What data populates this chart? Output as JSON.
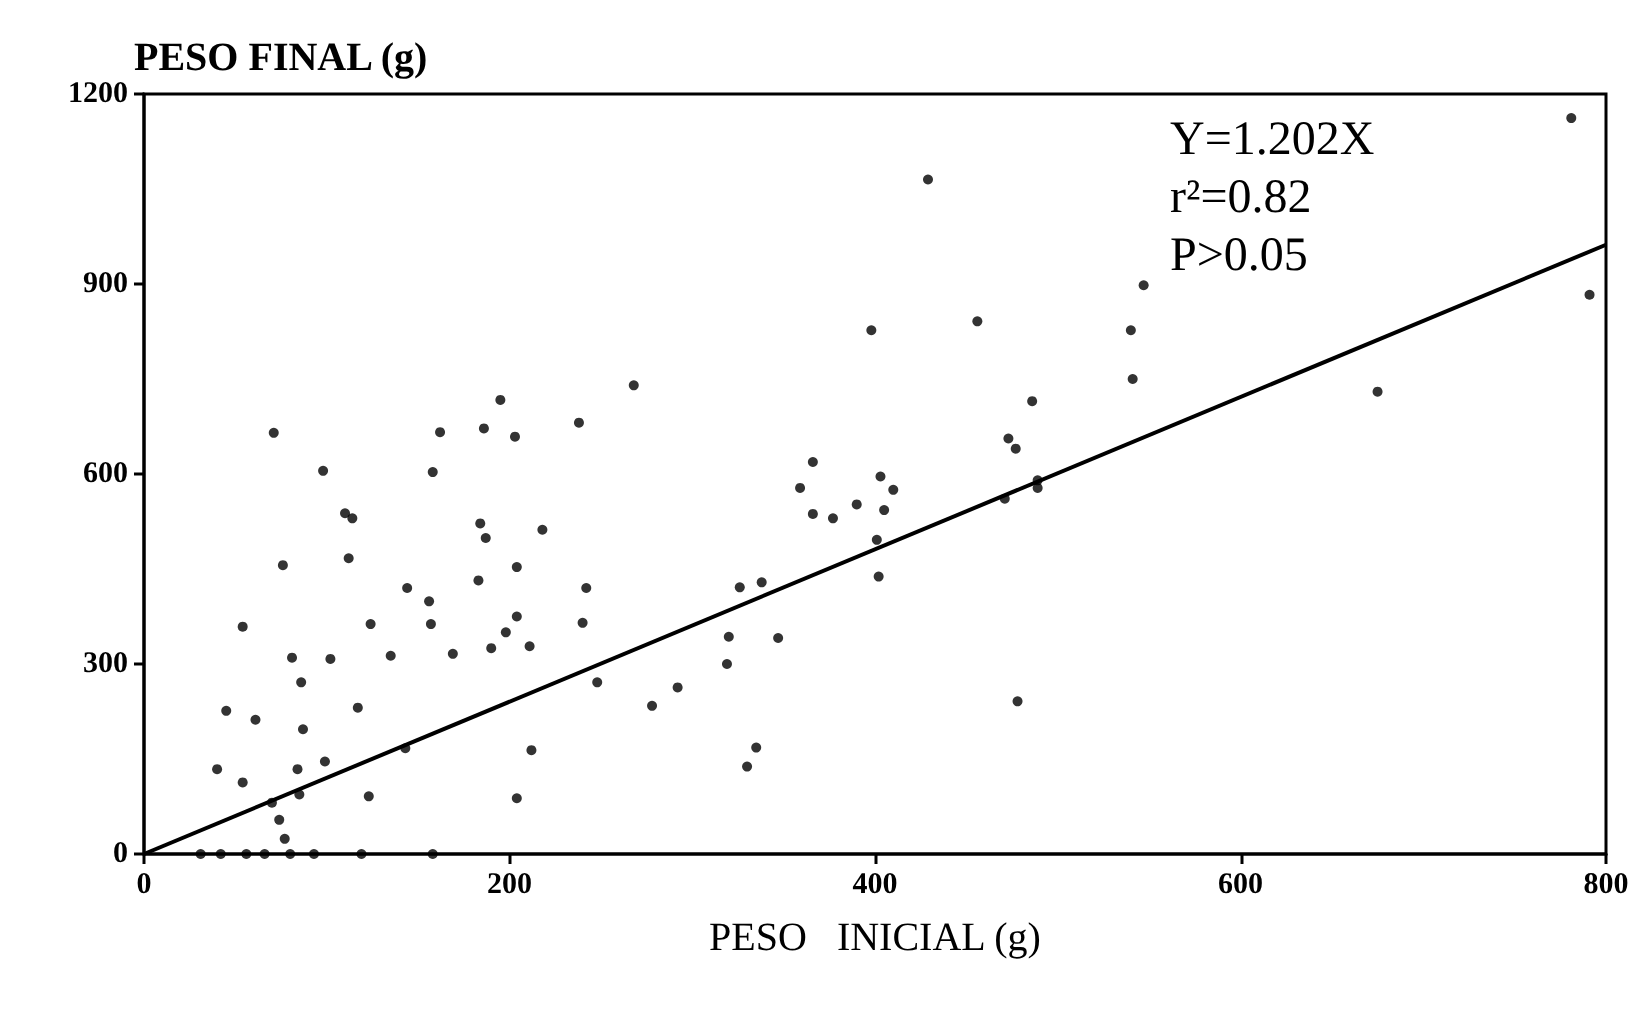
{
  "chart_data": {
    "type": "scatter",
    "xlabel": "PESO   INICIAL (g)",
    "ylabel": "PESO FINAL (g)",
    "annotations": [
      "Y=1.202X",
      "r²=0.82",
      "P>0.05"
    ],
    "xlim": [
      0,
      800
    ],
    "xticks": [
      0,
      200,
      400,
      600,
      800
    ],
    "ylim": [
      0,
      1200
    ],
    "yticks": [
      0,
      300,
      600,
      900,
      1200
    ],
    "grid": false,
    "marker": "circle",
    "series": [
      {
        "color": "#000000",
        "x": [
          31,
          42,
          56,
          66,
          80,
          93,
          119,
          158,
          71,
          98,
          110,
          114,
          76,
          112,
          54,
          144,
          156,
          157,
          124,
          81,
          102,
          135,
          86,
          45,
          61,
          117,
          87,
          40,
          54,
          84,
          99,
          143,
          85,
          70,
          74,
          77,
          123,
          204,
          212,
          162,
          186,
          203,
          238,
          158,
          184,
          187,
          218,
          183,
          204,
          242,
          204,
          198,
          190,
          211,
          240,
          169,
          248,
          195,
          268,
          278,
          398,
          456,
          486,
          473,
          477,
          489,
          489,
          471,
          366,
          359,
          403,
          410,
          366,
          377,
          390,
          405,
          401,
          402,
          326,
          338,
          320,
          347,
          319,
          292,
          335,
          330,
          478,
          781,
          791,
          547,
          540,
          541,
          675,
          429
        ],
        "values": [
          0,
          0,
          0,
          0,
          0,
          0,
          0,
          0,
          665,
          605,
          538,
          530,
          456,
          467,
          359,
          420,
          399,
          363,
          363,
          310,
          308,
          313,
          271,
          226,
          212,
          231,
          197,
          134,
          113,
          134,
          146,
          167,
          94,
          81,
          54,
          24,
          91,
          88,
          164,
          666,
          672,
          659,
          681,
          603,
          522,
          499,
          512,
          432,
          453,
          420,
          375,
          350,
          325,
          328,
          365,
          316,
          271,
          717,
          740,
          234,
          827,
          841,
          715,
          656,
          640,
          590,
          578,
          561,
          619,
          578,
          596,
          575,
          537,
          530,
          552,
          543,
          496,
          438,
          421,
          429,
          343,
          341,
          300,
          263,
          168,
          138,
          241,
          1162,
          883,
          898,
          827,
          750,
          730,
          1065
        ]
      },
      {
        "type": "line",
        "color": "#000000",
        "marker": "none",
        "line_style": "solid",
        "x": [
          0,
          800
        ],
        "values": [
          0,
          962
        ]
      }
    ]
  }
}
